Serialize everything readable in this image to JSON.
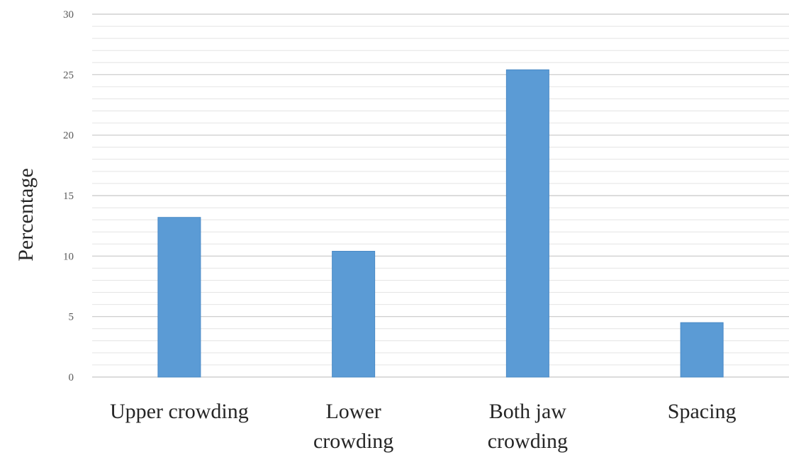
{
  "chart_data": {
    "type": "bar",
    "title": "",
    "xlabel": "",
    "ylabel": "Percentage",
    "categories": [
      [
        "Upper crowding"
      ],
      [
        "Lower",
        "crowding"
      ],
      [
        "Both jaw",
        "crowding"
      ],
      [
        "Spacing"
      ]
    ],
    "values": [
      13.2,
      10.4,
      25.4,
      4.5
    ],
    "ylim": [
      0,
      30
    ],
    "yticks": [
      0,
      5,
      10,
      15,
      20,
      25,
      30
    ],
    "minor_step": 1,
    "grid": true,
    "legend": "none",
    "colors": {
      "bar": "#5b9bd5",
      "bar_edge": "#4a8ac6",
      "major_grid": "#c8c8c8",
      "minor_grid": "#e4e4e4"
    }
  }
}
